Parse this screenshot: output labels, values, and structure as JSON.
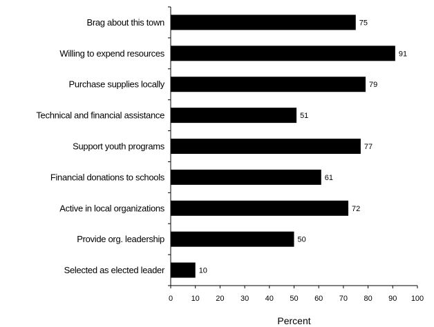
{
  "chart_data": {
    "type": "bar",
    "orientation": "horizontal",
    "categories": [
      "Brag about this town",
      "Willing to expend resources",
      "Purchase supplies locally",
      "Technical and financial assistance",
      "Support youth programs",
      "Financial donations to schools",
      "Active in local organizations",
      "Provide org. leadership",
      "Selected as elected leader"
    ],
    "values": [
      75,
      91,
      79,
      51,
      77,
      61,
      72,
      50,
      10
    ],
    "value_labels": [
      "75",
      "91",
      "79",
      "51",
      "77",
      "61",
      "72",
      "50",
      "10"
    ],
    "xlabel": "Percent",
    "xlim": [
      0,
      100
    ],
    "xticks": [
      "0",
      "10",
      "20",
      "30",
      "40",
      "50",
      "60",
      "70",
      "80",
      "90",
      "100"
    ],
    "bar_color": "#000000",
    "grid": false,
    "legend": "none"
  }
}
